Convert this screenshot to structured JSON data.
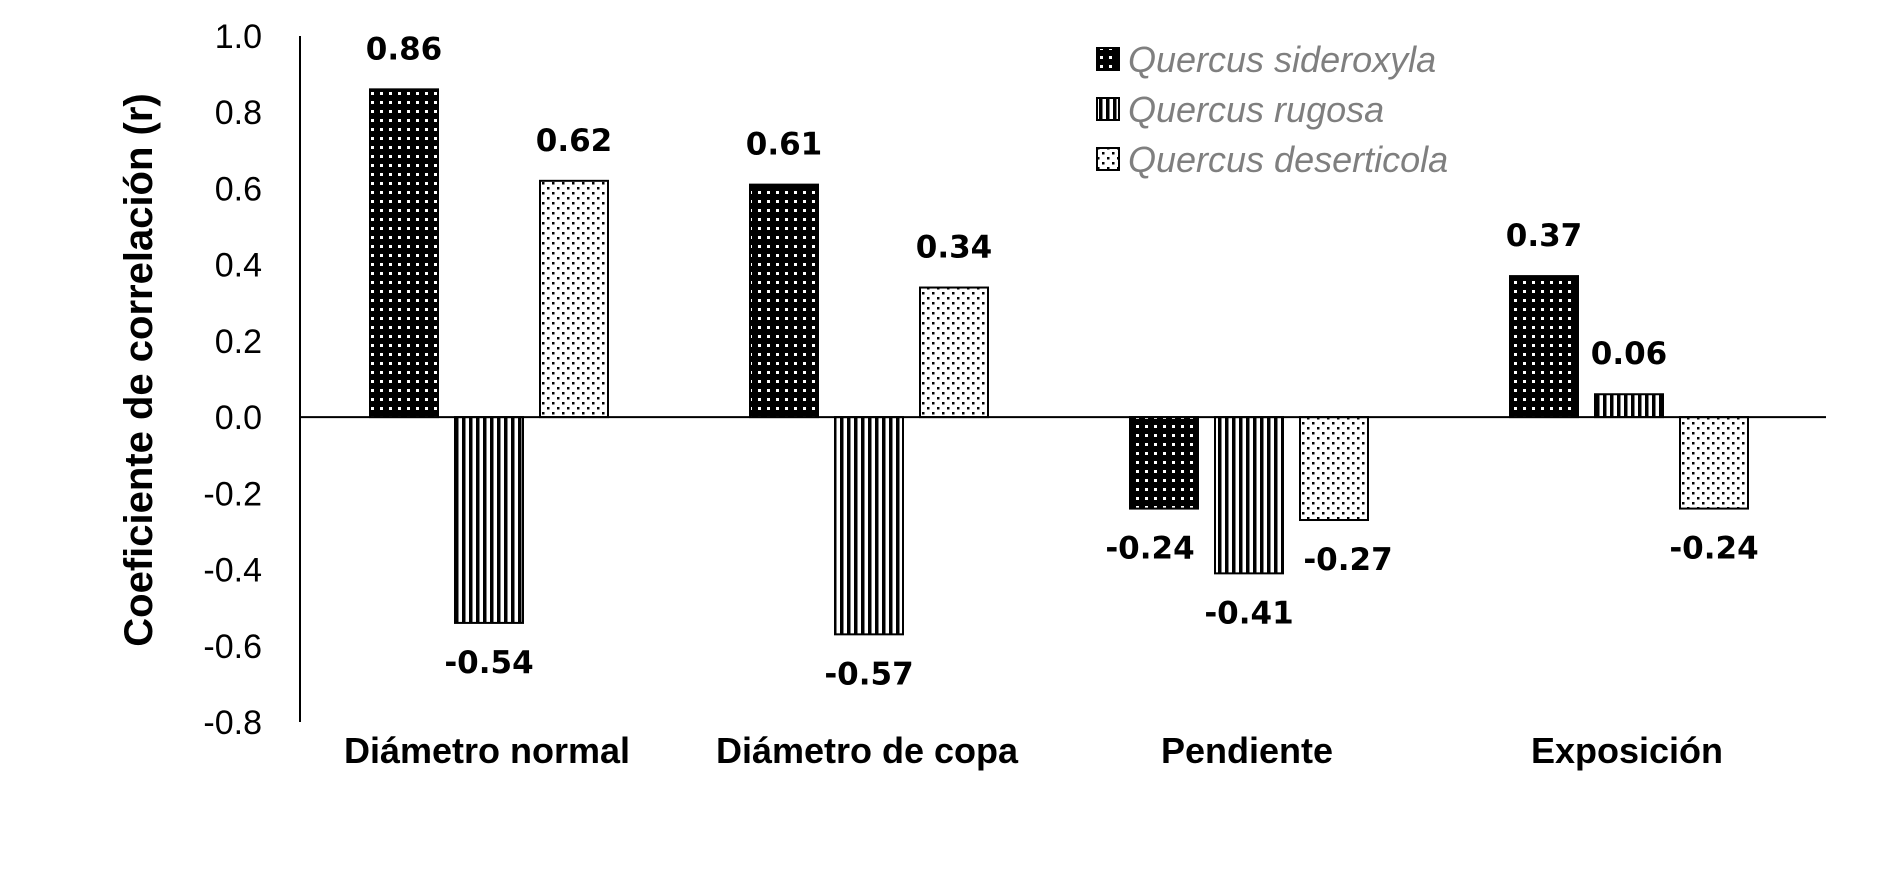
{
  "chart_data": {
    "type": "bar",
    "ylabel": "Coeficiente de correlación (r)",
    "xlabel": "",
    "ylim": [
      -0.8,
      1.0
    ],
    "yticks": [
      "1.0",
      "0.8",
      "0.6",
      "0.4",
      "0.2",
      "0.0",
      "-0.2",
      "-0.4",
      "-0.6",
      "-0.8"
    ],
    "categories": [
      "Diámetro normal",
      "Diámetro de copa",
      "Pendiente",
      "Exposición"
    ],
    "series": [
      {
        "name": "Quercus sideroxyla",
        "pattern": "dark-dots",
        "values": [
          0.86,
          0.61,
          -0.24,
          0.37
        ],
        "labels": [
          "0.86",
          "0.61",
          "-0.24",
          "0.37"
        ]
      },
      {
        "name": "Quercus rugosa",
        "pattern": "vertical-stripes",
        "values": [
          -0.54,
          -0.57,
          -0.41,
          0.06
        ],
        "labels": [
          "-0.54",
          "-0.57",
          "-0.41",
          "0.06"
        ]
      },
      {
        "name": "Quercus deserticola",
        "pattern": "light-dots",
        "values": [
          0.62,
          0.34,
          -0.27,
          -0.24
        ],
        "labels": [
          "0.62",
          "0.34",
          "-0.27",
          "-0.24"
        ]
      }
    ],
    "legend_position": "top-right",
    "grid": false
  }
}
